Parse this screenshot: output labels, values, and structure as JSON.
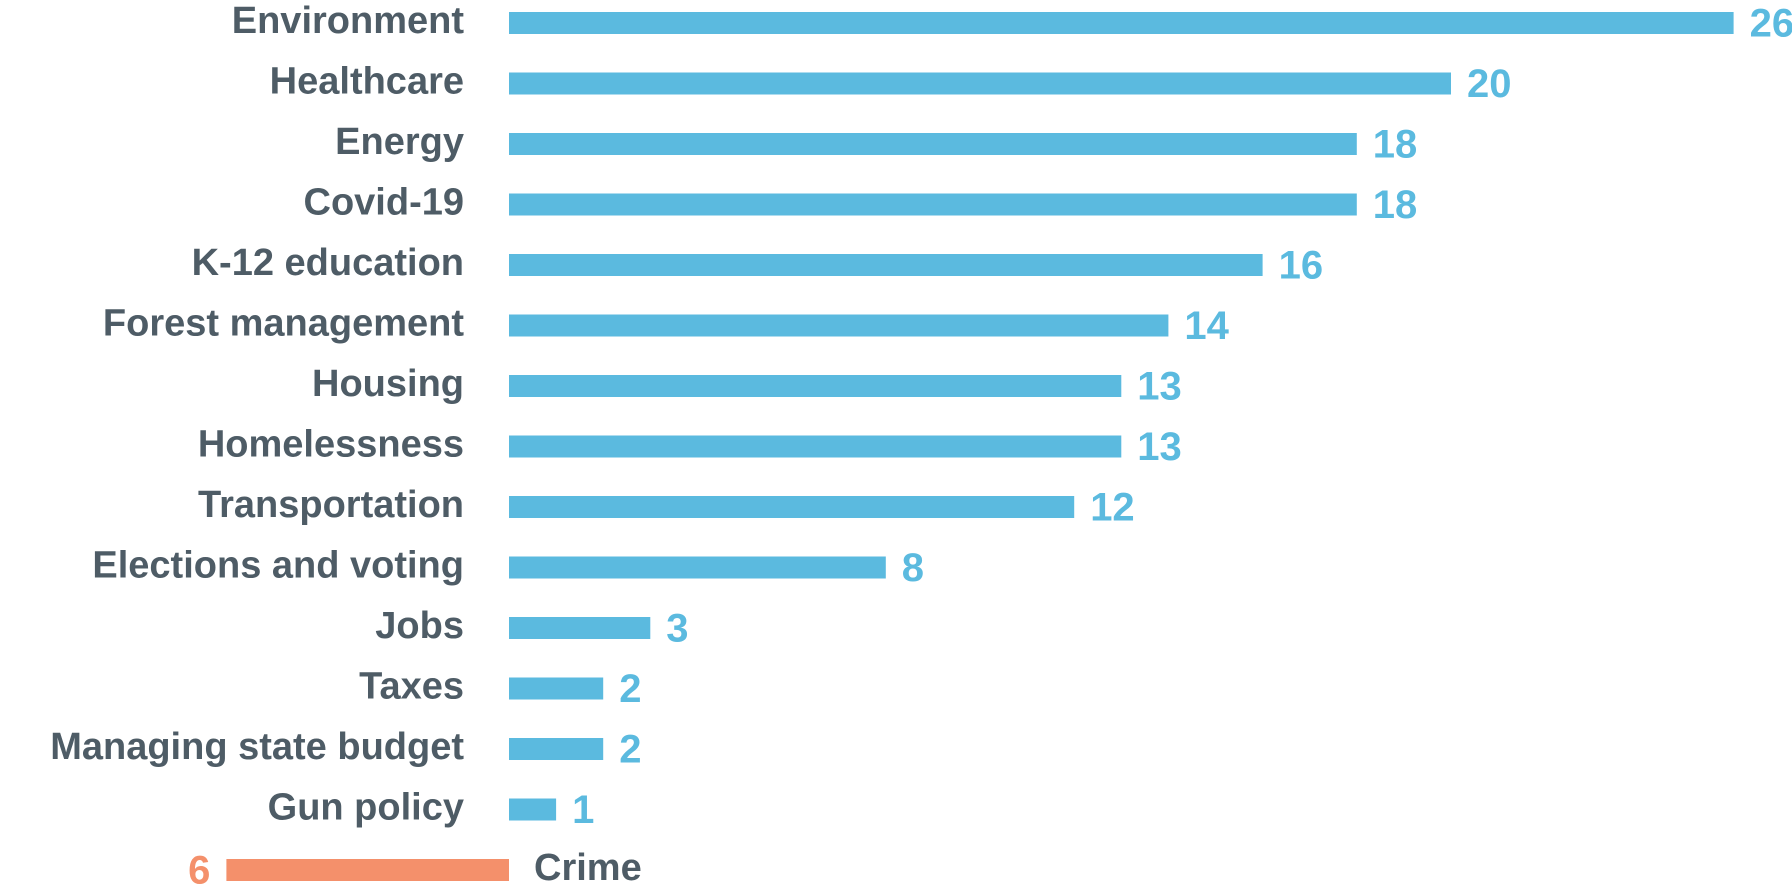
{
  "chart_data": {
    "type": "bar",
    "orientation": "horizontal",
    "title": "",
    "xlabel": "",
    "ylabel": "",
    "grid": false,
    "categories": [
      "Environment",
      "Healthcare",
      "Energy",
      "Covid-19",
      "K-12 education",
      "Forest management",
      "Housing",
      "Homelessness",
      "Transportation",
      "Elections and voting",
      "Jobs",
      "Taxes",
      "Managing state budget",
      "Gun policy",
      "Crime"
    ],
    "values": [
      26,
      20,
      18,
      18,
      16,
      14,
      13,
      13,
      12,
      8,
      3,
      2,
      2,
      1,
      -6
    ],
    "value_labels": [
      "26",
      "20",
      "18",
      "18",
      "16",
      "14",
      "13",
      "13",
      "12",
      "8",
      "3",
      "2",
      "2",
      "1",
      "6"
    ],
    "colors": {
      "positive": "#5BBADF",
      "negative": "#F4906B",
      "category_text": "#4E5C66"
    }
  }
}
